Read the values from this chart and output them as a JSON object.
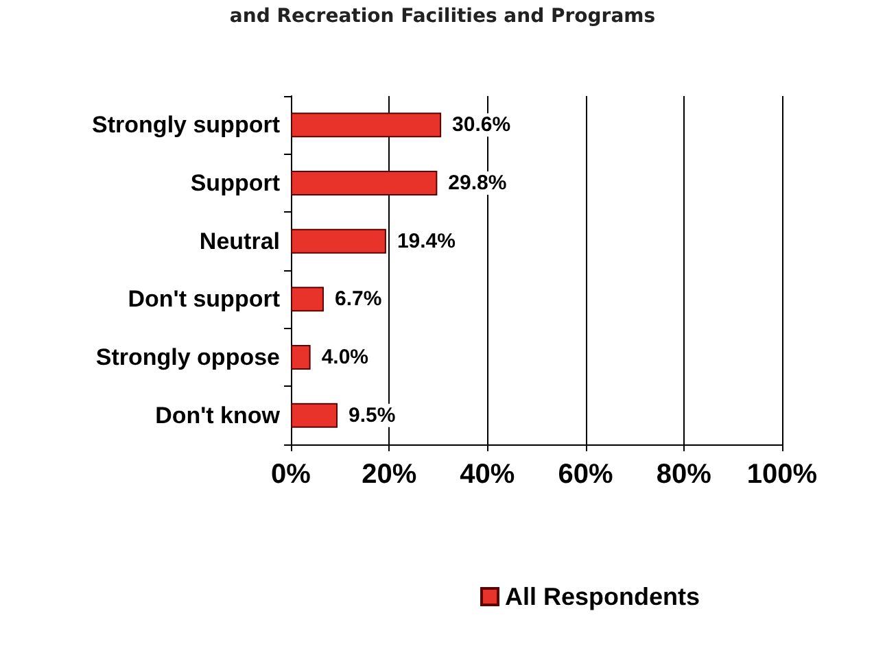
{
  "chart_data": {
    "type": "bar",
    "orientation": "horizontal",
    "title": "and Recreation Facilities and Programs",
    "categories": [
      "Strongly support",
      "Support",
      "Neutral",
      "Don't support",
      "Strongly oppose",
      "Don't know"
    ],
    "series": [
      {
        "name": "All Respondents",
        "color": "#e8332b",
        "values": [
          30.6,
          29.8,
          19.4,
          6.7,
          4.0,
          9.5
        ],
        "value_labels": [
          "30.6%",
          "29.8%",
          "19.4%",
          "6.7%",
          "4.0%",
          "9.5%"
        ]
      }
    ],
    "xlim": [
      0,
      100
    ],
    "xticks": [
      {
        "value": 0,
        "label": "0%"
      },
      {
        "value": 20,
        "label": "20%"
      },
      {
        "value": 40,
        "label": "40%"
      },
      {
        "value": 60,
        "label": "60%"
      },
      {
        "value": 80,
        "label": "80%"
      },
      {
        "value": 100,
        "label": "100%"
      }
    ],
    "grid": "x",
    "legend": "bottom"
  }
}
